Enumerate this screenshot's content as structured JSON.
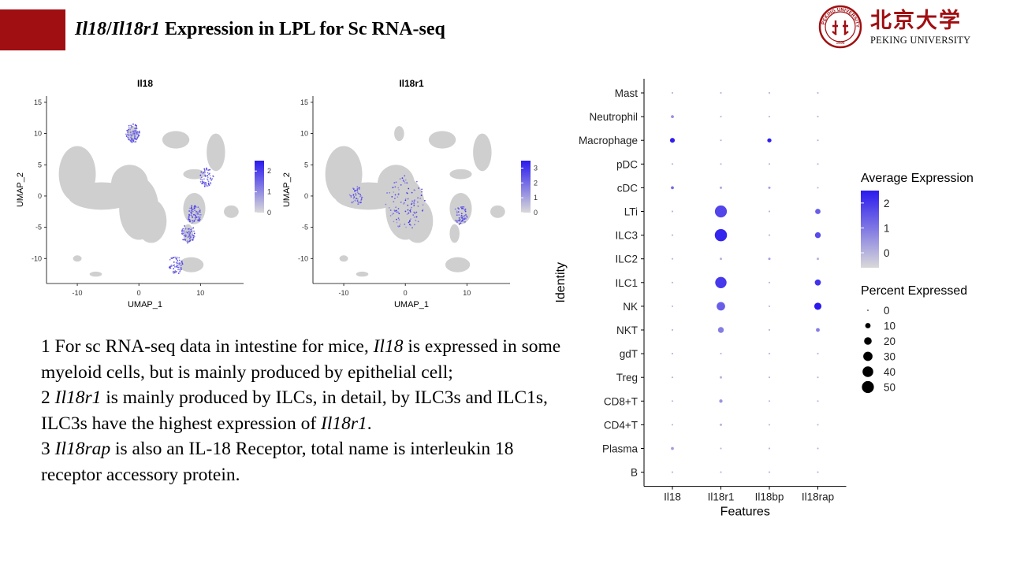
{
  "slide": {
    "title_gene1": "Il18",
    "title_slash": "/",
    "title_gene2": "Il18r1",
    "title_rest": " Expression in LPL for Sc RNA-seq",
    "university_cn": "北京大学",
    "university_en": "PEKING UNIVERSITY",
    "seal_text": "PEKING UNIVERSITY 1898"
  },
  "colors": {
    "brand_red": "#a00f12",
    "high": "#2a1aee",
    "low": "#d9d9d9",
    "cell_grey": "#cfcfcf"
  },
  "body_text": [
    {
      "segments": [
        "1 For sc RNA-seq data in intestine for mice, ",
        "Il18",
        " is expressed in some myeloid cells, but is mainly produced by epithelial cell;"
      ]
    },
    {
      "segments": [
        "2 ",
        "Il18r1",
        " is mainly produced by ILCs, in detail, by ILC3s and ILC1s, ILC3s have the highest expression of ",
        "Il18r1",
        "."
      ]
    },
    {
      "segments": [
        "3 ",
        "Il18rap",
        " is also an IL-18 Receptor, total name is interleukin 18 receptor accessory protein."
      ]
    }
  ],
  "chart_data": [
    {
      "type": "scatter",
      "title": "Il18",
      "xlabel": "UMAP_1",
      "ylabel": "UMAP_2",
      "x_ticks": [
        "-10",
        "0",
        "10"
      ],
      "y_ticks": [
        "15",
        "10",
        "5",
        "0",
        "-5",
        "-10"
      ],
      "xlim": [
        -15,
        17
      ],
      "ylim": [
        -14,
        16
      ],
      "colorbar_ticks": [
        "2",
        "1",
        "0"
      ],
      "colorbar_range": [
        0,
        2.5
      ],
      "expression_hotspots": [
        {
          "x": 9,
          "y": -3,
          "level": 0.5
        },
        {
          "x": 8,
          "y": -6,
          "level": 0.4
        },
        {
          "x": 11,
          "y": 3,
          "level": 0.4
        },
        {
          "x": -1,
          "y": 10,
          "level": 0.6
        },
        {
          "x": 6,
          "y": -11,
          "level": 0.4
        }
      ]
    },
    {
      "type": "scatter",
      "title": "Il18r1",
      "xlabel": "UMAP_1",
      "ylabel": "UMAP_2",
      "x_ticks": [
        "-10",
        "0",
        "10"
      ],
      "y_ticks": [
        "15",
        "10",
        "5",
        "0",
        "-5",
        "-10"
      ],
      "xlim": [
        -15,
        17
      ],
      "ylim": [
        -14,
        16
      ],
      "colorbar_ticks": [
        "3",
        "2",
        "1",
        "0"
      ],
      "colorbar_range": [
        0,
        3.5
      ],
      "expression_hotspots": [
        {
          "x": 0,
          "y": -1,
          "level": 0.7
        },
        {
          "x": -8,
          "y": 0,
          "level": 0.3
        },
        {
          "x": 9,
          "y": -3,
          "level": 0.35
        }
      ]
    },
    {
      "type": "scatter",
      "subtype": "dot-plot",
      "xlabel": "Features",
      "ylabel": "Identity",
      "features": [
        "Il18",
        "Il18r1",
        "Il18bp",
        "Il18rap"
      ],
      "identities": [
        "Mast",
        "Neutrophil",
        "Macrophage",
        "pDC",
        "cDC",
        "LTi",
        "ILC3",
        "ILC2",
        "ILC1",
        "NK",
        "NKT",
        "gdT",
        "Treg",
        "CD8+T",
        "CD4+T",
        "Plasma",
        "B"
      ],
      "percent_expressed": [
        [
          1,
          1,
          1,
          1
        ],
        [
          3,
          1,
          1,
          1
        ],
        [
          8,
          1,
          6,
          1
        ],
        [
          1,
          1,
          1,
          1
        ],
        [
          3,
          2,
          2,
          1
        ],
        [
          1,
          50,
          1,
          10
        ],
        [
          1,
          52,
          1,
          12
        ],
        [
          1,
          2,
          2,
          2
        ],
        [
          1,
          45,
          1,
          13
        ],
        [
          1,
          25,
          1,
          18
        ],
        [
          1,
          12,
          1,
          5
        ],
        [
          1,
          1,
          1,
          1
        ],
        [
          1,
          2,
          1,
          1
        ],
        [
          1,
          4,
          1,
          1
        ],
        [
          1,
          2,
          1,
          1
        ],
        [
          3,
          1,
          1,
          1
        ],
        [
          1,
          1,
          1,
          1
        ]
      ],
      "average_expression": [
        [
          0,
          0,
          0,
          0
        ],
        [
          0.6,
          0,
          0,
          0
        ],
        [
          2.4,
          0,
          2.4,
          0
        ],
        [
          0,
          0,
          0,
          0
        ],
        [
          1.2,
          0.2,
          0.3,
          0
        ],
        [
          0,
          1.8,
          0,
          1.4
        ],
        [
          0,
          2.3,
          0,
          1.7
        ],
        [
          0,
          0,
          0.3,
          0
        ],
        [
          0,
          2.0,
          0,
          2.1
        ],
        [
          0,
          1.4,
          0,
          2.5
        ],
        [
          0,
          0.9,
          0,
          0.9
        ],
        [
          0,
          0,
          0,
          0
        ],
        [
          0,
          0,
          0,
          0
        ],
        [
          0,
          0.5,
          0,
          0
        ],
        [
          0,
          0,
          0,
          0
        ],
        [
          0.4,
          0,
          0,
          0
        ],
        [
          0,
          0,
          0,
          0
        ]
      ],
      "legend_color": {
        "title": "Average Expression",
        "ticks": [
          "2",
          "1",
          "0"
        ],
        "range": [
          -0.6,
          2.5
        ]
      },
      "legend_size": {
        "title": "Percent Expressed",
        "labels": [
          "0",
          "10",
          "20",
          "30",
          "40",
          "50"
        ],
        "values": [
          0,
          10,
          20,
          30,
          40,
          50
        ]
      },
      "legend_position": "right"
    }
  ]
}
